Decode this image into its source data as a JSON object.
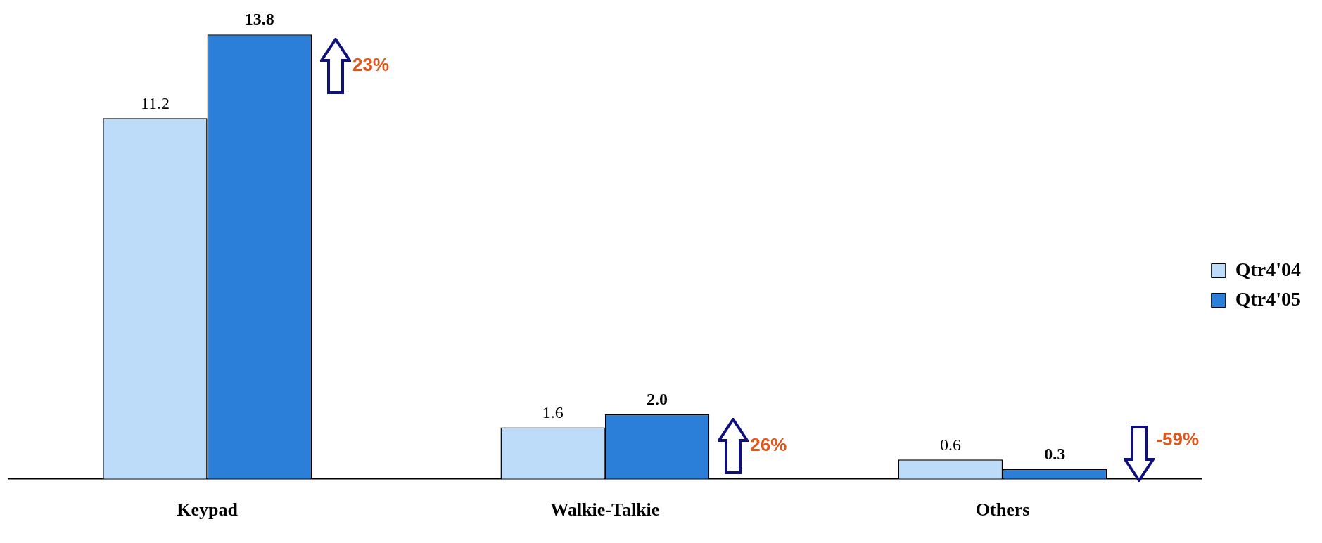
{
  "chart_data": {
    "type": "bar",
    "categories": [
      "Keypad",
      "Walkie-Talkie",
      "Others"
    ],
    "series": [
      {
        "name": "Qtr4'04",
        "color": "#bcdcfa",
        "values": [
          11.2,
          1.6,
          0.6
        ],
        "value_labels": [
          "11.2",
          "1.6",
          "0.6"
        ]
      },
      {
        "name": "Qtr4'05",
        "color": "#2b7fd9",
        "values": [
          13.8,
          2.0,
          0.3
        ],
        "value_labels": [
          "13.8",
          "2.0",
          "0.3"
        ]
      }
    ],
    "annotations": [
      "23%",
      "26%",
      "-59%"
    ],
    "legend": "right",
    "grid": false
  }
}
